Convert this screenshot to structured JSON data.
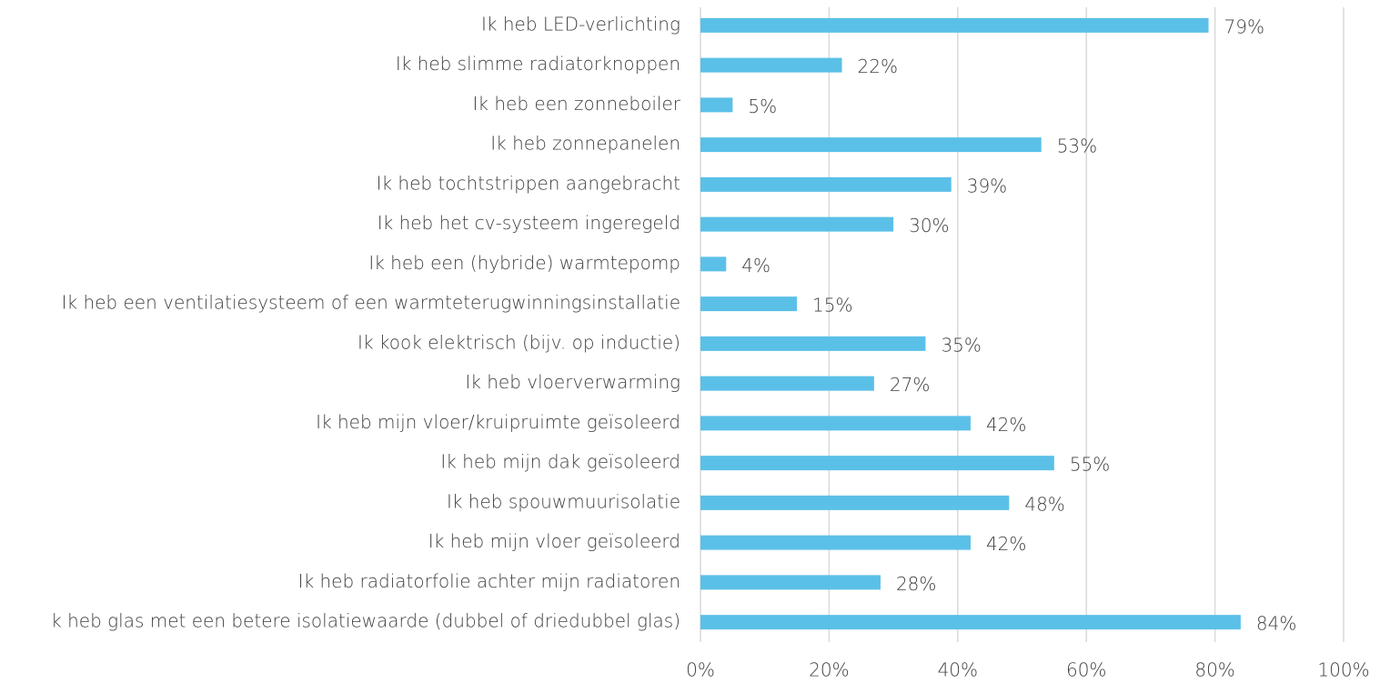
{
  "chart_data": {
    "type": "barh",
    "categories": [
      "Ik heb LED-verlichting",
      "Ik heb slimme radiatorknoppen",
      "Ik heb een zonneboiler",
      "Ik heb zonnepanelen",
      "Ik heb tochtstrippen aangebracht",
      "Ik heb het cv-systeem ingeregeld ",
      "Ik heb een (hybride) warmtepomp",
      "Ik heb een ventilatiesysteem of een warmteterugwinningsinstallatie",
      "Ik kook elektrisch (bijv. op inductie)",
      "Ik heb vloerverwarming",
      "Ik heb mijn vloer/kruipruimte geïsoleerd",
      "Ik heb mijn dak geïsoleerd",
      "Ik heb spouwmuurisolatie",
      "Ik heb mijn vloer geïsoleerd",
      "Ik heb radiatorfolie achter mijn radiatoren",
      "k heb glas met een betere isolatiewaarde (dubbel of driedubbel glas)"
    ],
    "values": [
      79,
      22,
      5,
      53,
      39,
      30,
      4,
      15,
      35,
      27,
      42,
      55,
      48,
      42,
      28,
      84
    ],
    "value_labels": [
      "79%",
      "22%",
      "5%",
      "53%",
      "39%",
      "30%",
      "4%",
      "15%",
      "35%",
      "27%",
      "42%",
      "55%",
      "48%",
      "42%",
      "28%",
      "84%"
    ],
    "color": "#5bc0e8",
    "xlim": [
      0,
      100
    ],
    "xticks": [
      {
        "value": 0,
        "label": "0%"
      },
      {
        "value": 20,
        "label": "20%"
      },
      {
        "value": 40,
        "label": "40%"
      },
      {
        "value": 60,
        "label": "60%"
      },
      {
        "value": 80,
        "label": "80%"
      },
      {
        "value": 100,
        "label": "100%"
      }
    ],
    "grid": true
  }
}
